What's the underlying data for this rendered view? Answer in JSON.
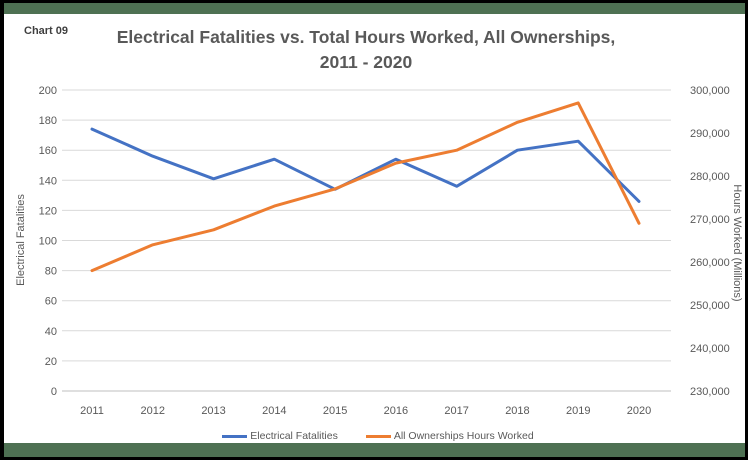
{
  "window": {
    "chart_label": "Chart 09"
  },
  "title": {
    "line1": "Electrical Fatalities vs. Total Hours Worked, All Ownerships,",
    "line2": "2011 - 2020"
  },
  "colors": {
    "banner_green": "#4e7153",
    "frame_black": "#000000",
    "fatalities_line": "#4472C4",
    "hours_line": "#ED7D31",
    "gridline": "#D9D9D9",
    "axis_line": "#BFBFBF",
    "tick_text": "#595959",
    "title_text": "#595959"
  },
  "chart_data": {
    "type": "line",
    "title": "Electrical Fatalities vs. Total Hours Worked, All Ownerships, 2011 - 2020",
    "categories": [
      "2011",
      "2012",
      "2013",
      "2014",
      "2015",
      "2016",
      "2017",
      "2018",
      "2019",
      "2020"
    ],
    "series": [
      {
        "name": "Electrical Fatalities",
        "axis": "left",
        "color": "#4472C4",
        "values": [
          174,
          156,
          141,
          154,
          134,
          154,
          136,
          160,
          166,
          126
        ]
      },
      {
        "name": "All Ownerships Hours Worked",
        "axis": "right",
        "color": "#ED7D31",
        "values": [
          258000,
          264000,
          267500,
          273000,
          277000,
          283000,
          286000,
          292500,
          297000,
          269000
        ]
      }
    ],
    "left_axis": {
      "label": "Electrical Fatalities",
      "min": 0,
      "max": 200,
      "tick_step": 20,
      "ticks": [
        "0",
        "20",
        "40",
        "60",
        "80",
        "100",
        "120",
        "140",
        "160",
        "180",
        "200"
      ]
    },
    "right_axis": {
      "label": "Hours Worked (Millions)",
      "min": 230000,
      "max": 300000,
      "tick_step": 10000,
      "ticks": [
        "230,000",
        "240,000",
        "250,000",
        "260,000",
        "270,000",
        "280,000",
        "290,000",
        "300,000"
      ]
    },
    "grid": true,
    "legend_position": "bottom",
    "legend": [
      "Electrical Fatalities",
      "All Ownerships Hours Worked"
    ]
  }
}
